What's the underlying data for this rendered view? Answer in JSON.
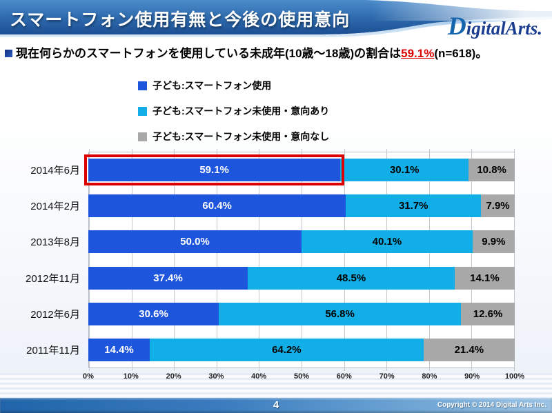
{
  "header": {
    "title": "スマートフォン使用有無と今後の使用意向",
    "logo": "DigitalArts."
  },
  "subtitle": {
    "prefix": "現在何らかのスマートフォンを使用している未成年(10歳～18歳)の割合は",
    "highlight": "59.1%",
    "suffix": "(n=618)。",
    "highlight_color": "#DD0000"
  },
  "chart_data": {
    "type": "bar",
    "stacked": true,
    "orientation": "horizontal",
    "title": "",
    "categories": [
      "2014年6月",
      "2014年2月",
      "2013年8月",
      "2012年11月",
      "2012年6月",
      "2011年11月"
    ],
    "series": [
      {
        "name": "子ども:スマートフォン使用",
        "color": "#1E55DD",
        "label_color": "#FFFFFF",
        "values": [
          59.1,
          60.4,
          50.0,
          37.4,
          30.6,
          14.4
        ]
      },
      {
        "name": "子ども:スマートフォン未使用・意向あり",
        "color": "#12AEE8",
        "label_color": "#000000",
        "values": [
          30.1,
          31.7,
          40.1,
          48.5,
          56.8,
          64.2
        ]
      },
      {
        "name": "子ども:スマートフォン未使用・意向なし",
        "color": "#A8A8A8",
        "label_color": "#000000",
        "values": [
          10.8,
          7.9,
          9.9,
          14.1,
          12.6,
          21.4
        ]
      }
    ],
    "x_ticks": [
      "0%",
      "10%",
      "20%",
      "30%",
      "40%",
      "50%",
      "60%",
      "70%",
      "80%",
      "90%",
      "100%"
    ],
    "xlim": [
      0,
      100
    ],
    "grid": true,
    "legend_position": "top-center",
    "value_label_format": "0.0%",
    "highlight": {
      "category_index": 0,
      "series_index": 0,
      "border_color": "#DD0000"
    }
  },
  "footer": {
    "page_number": "4",
    "copyright": "Copyright © 2014 Digital Arts Inc."
  }
}
